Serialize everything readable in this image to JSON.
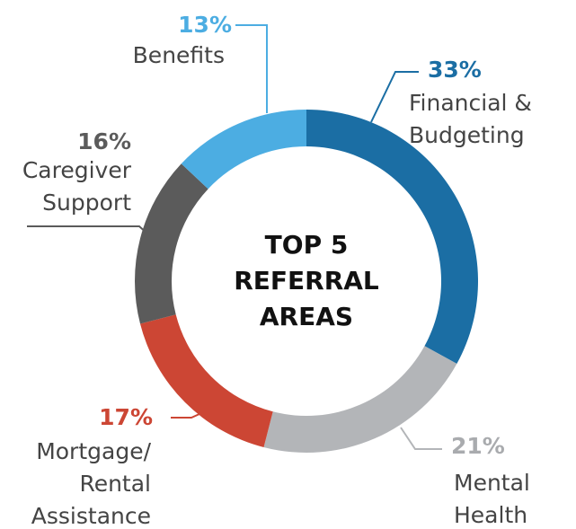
{
  "chart_data": {
    "type": "donut",
    "title": "TOP 5\nREFERRAL\nAREAS",
    "categories": [
      "Financial &\nBudgeting",
      "Mental\nHealth",
      "Mortgage/\nRental\nAssistance",
      "Caregiver\nSupport",
      "Benefits"
    ],
    "values": [
      33,
      21,
      17,
      16,
      13
    ],
    "value_labels": [
      "33%",
      "21%",
      "17%",
      "16%",
      "13%"
    ],
    "colors": [
      "#1b6ea4",
      "#b3b5b8",
      "#cc4634",
      "#5b5b5b",
      "#4cade2"
    ],
    "value_label_colors": [
      "#1b6ea4",
      "#a9abae",
      "#cc4634",
      "#5b5b5b",
      "#4cade2"
    ]
  }
}
